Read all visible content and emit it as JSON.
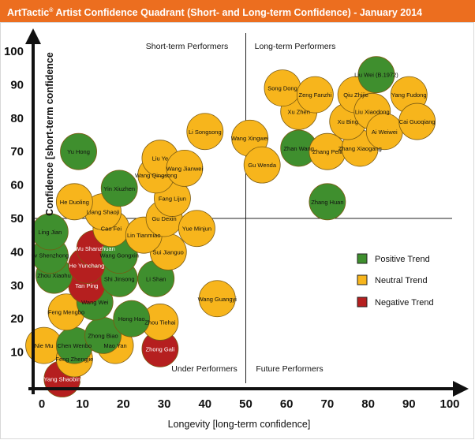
{
  "title": {
    "brand": "ArtTactic",
    "reg": "®",
    "text": " Artist Confidence Quadrant  (Short- and Long-term Confidence) - January 2014"
  },
  "colors": {
    "title_bg": "#ec6e1f",
    "positive": "#3f8f2e",
    "neutral": "#f7b51c",
    "negative": "#b51f1f",
    "bubble_stroke": "#7a5a12",
    "axis": "#111111"
  },
  "chart_data": {
    "type": "scatter",
    "title": "ArtTactic® Artist Confidence Quadrant  (Short- and Long-term Confidence) - January 2014",
    "xlabel": "Longevity [long-term confidence]",
    "ylabel": "Confidence [short-term confidence",
    "xlim": [
      0,
      100
    ],
    "ylim": [
      0,
      105
    ],
    "xticks": [
      "0",
      "10",
      "20",
      "30",
      "40",
      "50",
      "60",
      "70",
      "80",
      "90",
      "100"
    ],
    "yticks": [
      "10",
      "20",
      "30",
      "40",
      "50",
      "60",
      "70",
      "80",
      "90",
      "100"
    ],
    "quadrant_lines": {
      "x": 50,
      "y": 50
    },
    "quadrant_labels": {
      "top_left": "Short-term Performers",
      "top_right": "Long-term Performers",
      "bottom_left": "Under Performers",
      "bottom_right": "Future Performers"
    },
    "legend": {
      "placement": "right",
      "items": [
        {
          "label": "Positive Trend",
          "trend": "positive"
        },
        {
          "label": "Neutral Trend",
          "trend": "neutral"
        },
        {
          "label": "Negative Trend",
          "trend": "negative"
        }
      ]
    },
    "points": [
      {
        "name": "Yang Shaobin",
        "x": 5,
        "y": 2,
        "trend": "negative"
      },
      {
        "name": "Nie Mu",
        "x": 0.5,
        "y": 12,
        "trend": "neutral"
      },
      {
        "name": "Feng Zhengjie",
        "x": 8,
        "y": 8,
        "trend": "neutral"
      },
      {
        "name": "Chen Wenbo",
        "x": 8,
        "y": 12,
        "trend": "positive"
      },
      {
        "name": "Mao Yan",
        "x": 18,
        "y": 12,
        "trend": "neutral"
      },
      {
        "name": "Zhong Biao",
        "x": 15,
        "y": 15,
        "trend": "positive"
      },
      {
        "name": "Zhong Gali",
        "x": 29,
        "y": 11,
        "trend": "negative"
      },
      {
        "name": "Zhou Tiehai",
        "x": 29,
        "y": 19,
        "trend": "neutral"
      },
      {
        "name": "Feng Mengbo",
        "x": 6,
        "y": 22,
        "trend": "neutral"
      },
      {
        "name": "Wang Wei",
        "x": 13,
        "y": 25,
        "trend": "positive"
      },
      {
        "name": "Hong Hao",
        "x": 22,
        "y": 20,
        "trend": "positive"
      },
      {
        "name": "Tan Ping",
        "x": 11,
        "y": 30,
        "trend": "negative"
      },
      {
        "name": "Zhou Xiaohu",
        "x": 3,
        "y": 33,
        "trend": "positive"
      },
      {
        "name": "Shi Jinsong",
        "x": 19,
        "y": 32,
        "trend": "positive"
      },
      {
        "name": "Li Shan",
        "x": 28,
        "y": 32,
        "trend": "positive"
      },
      {
        "name": "He Yunchang",
        "x": 11,
        "y": 36,
        "trend": "negative"
      },
      {
        "name": "Lv Shenzhong",
        "x": 2,
        "y": 39,
        "trend": "positive"
      },
      {
        "name": "Wang Guangyi",
        "x": 43,
        "y": 26,
        "trend": "neutral"
      },
      {
        "name": "Wu Shanzhuan",
        "x": 13,
        "y": 41,
        "trend": "negative"
      },
      {
        "name": "Wang Gongxin",
        "x": 19,
        "y": 39,
        "trend": "positive"
      },
      {
        "name": "Sui Jianguo",
        "x": 31,
        "y": 40,
        "trend": "neutral"
      },
      {
        "name": "Ling Jian",
        "x": 2,
        "y": 46,
        "trend": "positive"
      },
      {
        "name": "Cao Fei",
        "x": 17,
        "y": 47,
        "trend": "neutral"
      },
      {
        "name": "Lin Tianmiao",
        "x": 25,
        "y": 45,
        "trend": "neutral"
      },
      {
        "name": "Gu Dexin",
        "x": 30,
        "y": 50,
        "trend": "neutral"
      },
      {
        "name": "Yue Minjun",
        "x": 38,
        "y": 47,
        "trend": "neutral"
      },
      {
        "name": "Liang Shaoji",
        "x": 15,
        "y": 52,
        "trend": "neutral"
      },
      {
        "name": "He Duoling",
        "x": 8,
        "y": 55,
        "trend": "neutral"
      },
      {
        "name": "Fang Lijun",
        "x": 32,
        "y": 56,
        "trend": "neutral"
      },
      {
        "name": "Yin Xiuzhen",
        "x": 19,
        "y": 59,
        "trend": "positive"
      },
      {
        "name": "Yu Hong",
        "x": 9,
        "y": 70,
        "trend": "positive"
      },
      {
        "name": "Wang Qingsong",
        "x": 28,
        "y": 63,
        "trend": "neutral"
      },
      {
        "name": "Liu Ye",
        "x": 29,
        "y": 68,
        "trend": "neutral"
      },
      {
        "name": "Wang Jianwei",
        "x": 35,
        "y": 65,
        "trend": "neutral"
      },
      {
        "name": "Li Songsong",
        "x": 40,
        "y": 76,
        "trend": "neutral"
      },
      {
        "name": "Wang Xingwei",
        "x": 51,
        "y": 74,
        "trend": "neutral"
      },
      {
        "name": "Gu Wenda",
        "x": 54,
        "y": 66,
        "trend": "neutral"
      },
      {
        "name": "Zhang Huan",
        "x": 70,
        "y": 55,
        "trend": "positive"
      },
      {
        "name": "Zhan Wang",
        "x": 63,
        "y": 71,
        "trend": "positive"
      },
      {
        "name": "Zhang Peili",
        "x": 70,
        "y": 70,
        "trend": "neutral"
      },
      {
        "name": "Zhang Xiaogang",
        "x": 78,
        "y": 71,
        "trend": "neutral"
      },
      {
        "name": "Xu Zhen",
        "x": 63,
        "y": 82,
        "trend": "neutral"
      },
      {
        "name": "Song Dong",
        "x": 59,
        "y": 89,
        "trend": "neutral"
      },
      {
        "name": "Zeng Fanzhi",
        "x": 67,
        "y": 87,
        "trend": "neutral"
      },
      {
        "name": "Xu Bing",
        "x": 75,
        "y": 79,
        "trend": "neutral"
      },
      {
        "name": "Qiu Zhijie",
        "x": 77,
        "y": 87,
        "trend": "neutral"
      },
      {
        "name": "Liu Xiaodong",
        "x": 81,
        "y": 82,
        "trend": "neutral"
      },
      {
        "name": "Ai Weiwei",
        "x": 84,
        "y": 76,
        "trend": "neutral"
      },
      {
        "name": "Liu Wei (B.1972)",
        "x": 82,
        "y": 93,
        "trend": "positive"
      },
      {
        "name": "Yang Fudong",
        "x": 90,
        "y": 87,
        "trend": "neutral"
      },
      {
        "name": "Cai Guoqiang",
        "x": 92,
        "y": 79,
        "trend": "neutral"
      }
    ]
  }
}
